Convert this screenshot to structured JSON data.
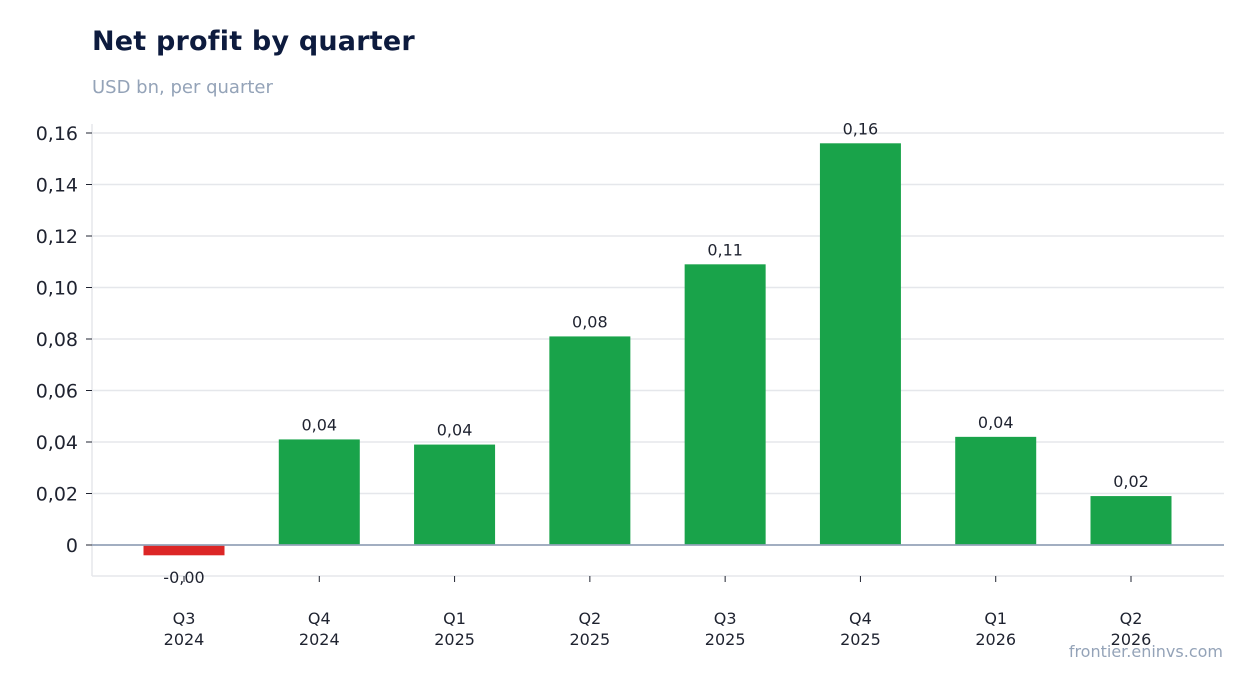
{
  "title": "Net profit by quarter",
  "subtitle": "USD bn, per quarter",
  "watermark": "frontier.eninvs.com",
  "colors": {
    "positive": "#19a34a",
    "negative": "#dc2626",
    "grid": "#e5e7eb",
    "axis": "#94a3b8"
  },
  "chart_data": {
    "type": "bar",
    "categories": [
      [
        "Q3",
        "2024"
      ],
      [
        "Q4",
        "2024"
      ],
      [
        "Q1",
        "2025"
      ],
      [
        "Q2",
        "2025"
      ],
      [
        "Q3",
        "2025"
      ],
      [
        "Q4",
        "2025"
      ],
      [
        "Q1",
        "2026"
      ],
      [
        "Q2",
        "2026"
      ]
    ],
    "values": [
      -0.004,
      0.041,
      0.039,
      0.081,
      0.109,
      0.156,
      0.042,
      0.019
    ],
    "data_labels": [
      "-0,00",
      "0,04",
      "0,04",
      "0,08",
      "0,11",
      "0,16",
      "0,04",
      "0,02"
    ],
    "yticks": [
      0,
      0.02,
      0.04,
      0.06,
      0.08,
      0.1,
      0.12,
      0.14,
      0.16
    ],
    "ytick_labels": [
      "0",
      "0,02",
      "0,04",
      "0,06",
      "0,08",
      "0,10",
      "0,12",
      "0,14",
      "0,16"
    ],
    "ylim": [
      -0.012,
      0.164
    ],
    "xlabel": "",
    "ylabel": "",
    "grid": true,
    "legend": "none"
  }
}
